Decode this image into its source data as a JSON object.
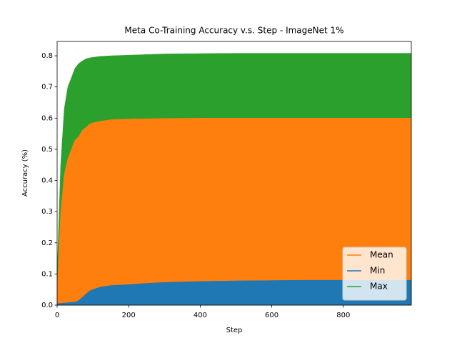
{
  "chart_data": {
    "type": "area",
    "title": "Meta Co-Training Accuracy v.s. Step - ImageNet 1%",
    "x_label": "Step",
    "y_label": "Accuracy (%)",
    "x": [
      0,
      10,
      20,
      30,
      40,
      50,
      60,
      70,
      80,
      90,
      100,
      120,
      150,
      200,
      250,
      300,
      400,
      500,
      600,
      700,
      800,
      900,
      990
    ],
    "series": [
      {
        "name": "Max",
        "color": "#2ca02c",
        "values": [
          0.1,
          0.45,
          0.63,
          0.7,
          0.73,
          0.76,
          0.775,
          0.783,
          0.79,
          0.793,
          0.795,
          0.798,
          0.8,
          0.802,
          0.804,
          0.806,
          0.807,
          0.808,
          0.808,
          0.808,
          0.808,
          0.808,
          0.808
        ]
      },
      {
        "name": "Mean",
        "color": "#ff7f0e",
        "values": [
          0.05,
          0.3,
          0.42,
          0.47,
          0.5,
          0.53,
          0.54,
          0.56,
          0.57,
          0.58,
          0.585,
          0.59,
          0.595,
          0.597,
          0.598,
          0.599,
          0.6,
          0.6,
          0.6,
          0.6,
          0.6,
          0.6,
          0.6
        ]
      },
      {
        "name": "Min",
        "color": "#1f77b4",
        "values": [
          0.005,
          0.006,
          0.007,
          0.008,
          0.009,
          0.01,
          0.015,
          0.025,
          0.035,
          0.045,
          0.05,
          0.058,
          0.063,
          0.066,
          0.07,
          0.073,
          0.076,
          0.078,
          0.079,
          0.08,
          0.08,
          0.08,
          0.08
        ]
      }
    ],
    "legend_order": [
      1,
      2,
      0
    ],
    "legend_position": "lower right",
    "xlim": [
      0,
      990
    ],
    "ylim": [
      0,
      0.846
    ],
    "xticks": [
      0,
      200,
      400,
      600,
      800
    ],
    "yticks": [
      {
        "value": 0,
        "label": "0.0"
      },
      0.1,
      0.2,
      0.3,
      0.4,
      0.5,
      0.6,
      0.7,
      0.8
    ]
  }
}
